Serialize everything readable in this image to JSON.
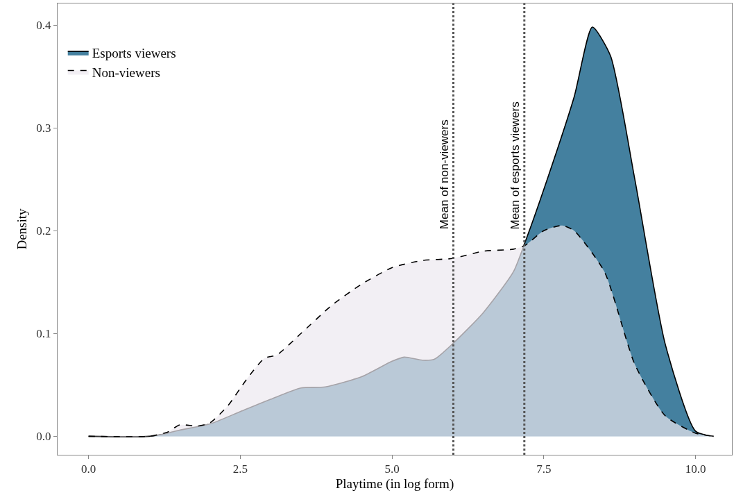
{
  "chart_data": {
    "type": "area",
    "xlabel": "Playtime (in log form)",
    "ylabel": "Density",
    "xlim": [
      -0.51,
      10.6
    ],
    "ylim": [
      -0.018,
      0.421
    ],
    "xticks": [
      {
        "value": 0,
        "label": "0.0"
      },
      2.5,
      {
        "value": 5,
        "label": "5.0"
      },
      7.5,
      {
        "value": 10,
        "label": "10.0"
      }
    ],
    "yticks": [
      {
        "value": 0,
        "label": "0.0"
      },
      0.1,
      0.2,
      0.3,
      0.4
    ],
    "grid": false,
    "legend": "top left",
    "marker": "none",
    "series": [
      {
        "name": "Esports viewers",
        "color": "#44809f",
        "line_style": "solid",
        "x": [
          0,
          1,
          1.3,
          1.5,
          2,
          2.5,
          3,
          3.5,
          3.9,
          4.5,
          5,
          5.2,
          5.5,
          5.7,
          6,
          6.5,
          7,
          7.2,
          7.5,
          8,
          8.3,
          8.6,
          9,
          9.5,
          10,
          10.3
        ],
        "values": [
          0,
          0,
          0.003,
          0.006,
          0.012,
          0.024,
          0.036,
          0.047,
          0.048,
          0.058,
          0.073,
          0.077,
          0.074,
          0.075,
          0.09,
          0.12,
          0.16,
          0.19,
          0.24,
          0.33,
          0.398,
          0.37,
          0.25,
          0.09,
          0.005,
          0
        ]
      },
      {
        "name": "Non-viewers",
        "color": "#ece8f0",
        "line_style": "dashed",
        "x": [
          0,
          1,
          1.3,
          1.5,
          1.8,
          2,
          2.3,
          2.6,
          2.9,
          3.1,
          3.5,
          4,
          4.5,
          5,
          5.5,
          6,
          6.5,
          7,
          7.2,
          7.5,
          7.8,
          8,
          8.5,
          9,
          9.5,
          10,
          10.3
        ],
        "values": [
          0,
          0,
          0.004,
          0.011,
          0.01,
          0.013,
          0.03,
          0.055,
          0.076,
          0.079,
          0.1,
          0.127,
          0.148,
          0.164,
          0.171,
          0.173,
          0.18,
          0.182,
          0.186,
          0.2,
          0.205,
          0.2,
          0.16,
          0.07,
          0.02,
          0.003,
          0
        ]
      }
    ],
    "ref_lines": [
      {
        "axis": "x",
        "value": 6.01,
        "label": "Mean of non-viewers",
        "color": "#555555",
        "line_style": "dotted"
      },
      {
        "axis": "x",
        "value": 7.18,
        "label": "Mean of esports viewers",
        "color": "#555555",
        "line_style": "dotted"
      }
    ]
  }
}
